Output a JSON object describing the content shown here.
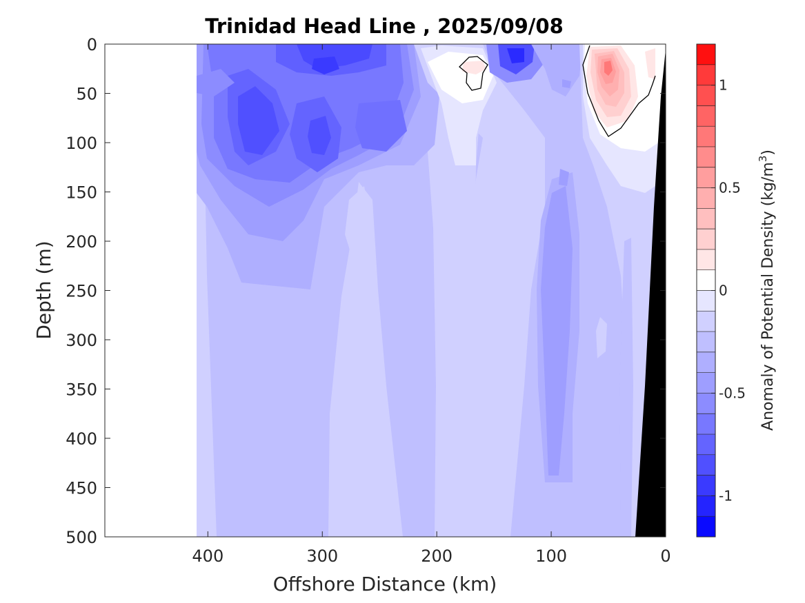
{
  "chart_data": {
    "type": "heatmap",
    "title": "Trinidad Head Line , 2025/09/08",
    "xlabel": "Offshore Distance (km)",
    "ylabel": "Depth (m)",
    "colorbar_label_main": "Anomaly of Potential Density (kg/m",
    "colorbar_label_sup": "3",
    "colorbar_label_close": ")",
    "xlim": [
      490,
      0
    ],
    "ylim": [
      0,
      500
    ],
    "x_reversed": true,
    "y_reversed": true,
    "x_ticks": [
      400,
      300,
      200,
      100,
      0
    ],
    "y_ticks": [
      0,
      50,
      100,
      150,
      200,
      250,
      300,
      350,
      400,
      450,
      500
    ],
    "clim": [
      -1.2,
      1.2
    ],
    "colorbar_ticks": [
      1,
      0.5,
      0,
      -0.5,
      -1
    ],
    "colorbar_levels": [
      -1.2,
      -1.1,
      -1.0,
      -0.9,
      -0.8,
      -0.7,
      -0.6,
      -0.5,
      -0.4,
      -0.3,
      -0.2,
      -0.1,
      0,
      0.1,
      0.2,
      0.3,
      0.4,
      0.5,
      0.6,
      0.7,
      0.8,
      0.9,
      1.0,
      1.1,
      1.2
    ],
    "colorbar_colors": [
      "#0a0aff",
      "#2424ff",
      "#3a3aff",
      "#5050ff",
      "#6464ff",
      "#7878ff",
      "#8c8cff",
      "#9e9eff",
      "#afafff",
      "#bfbfff",
      "#d0d0ff",
      "#e6e6ff",
      "#ffffff",
      "#ffe6e6",
      "#ffd0d0",
      "#ffbfbf",
      "#ffafaf",
      "#ff9e9e",
      "#ff8c8c",
      "#ff7878",
      "#ff6464",
      "#ff5050",
      "#ff3a3a",
      "#ff1010"
    ],
    "data_extent_km": [
      410,
      0
    ],
    "bathymetry_color": "#000000",
    "grid": false
  }
}
